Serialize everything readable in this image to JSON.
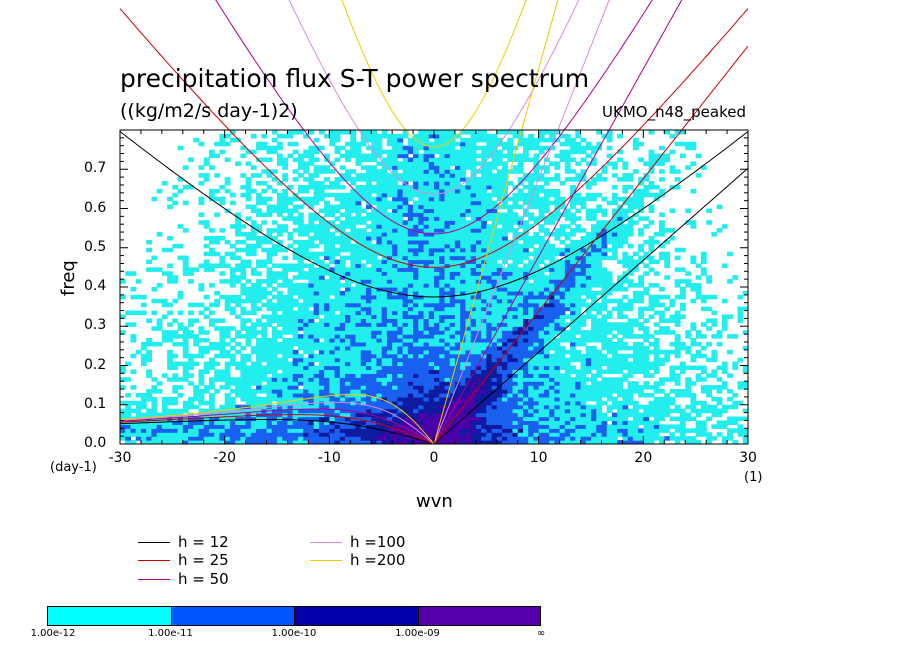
{
  "header": {
    "title": "precipitation flux S-T power spectrum",
    "units": "((kg/m2/s day-1)2)",
    "model": "UKMO_n48_peaked"
  },
  "chart_data": {
    "type": "heatmap",
    "xlabel": "wvn",
    "ylabel": "freq",
    "x_unit": "(1)",
    "y_unit": "(day-1)",
    "xlim": [
      -30,
      30
    ],
    "ylim": [
      0.0,
      0.8
    ],
    "x_ticks": [
      "-30",
      "-20",
      "-10",
      "0",
      "10",
      "20",
      "30"
    ],
    "y_ticks": [
      "0.0",
      "0.1",
      "0.2",
      "0.3",
      "0.4",
      "0.5",
      "0.6",
      "0.7"
    ],
    "x_tick_values": [
      -30,
      -20,
      -10,
      0,
      10,
      20,
      30
    ],
    "y_tick_values": [
      0.0,
      0.1,
      0.2,
      0.3,
      0.4,
      0.5,
      0.6,
      0.7
    ],
    "colorbar": {
      "labels": [
        "1.00e-12",
        "1.00e-11",
        "1.00e-10",
        "1.00e-09",
        "∞"
      ],
      "colors": [
        "#00ffff",
        "#0055ff",
        "#0000aa",
        "#5500aa"
      ]
    },
    "fill_colors": {
      "band1": "#22eeee",
      "band2": "#1a60f0",
      "band3": "#0e1aa0",
      "band4": "#4a00a8"
    },
    "dispersion_curves": [
      {
        "name": "h = 12",
        "h": 12,
        "color": "#000000"
      },
      {
        "name": "h = 25",
        "h": 25,
        "color": "#cc0000"
      },
      {
        "name": "h = 50",
        "h": 50,
        "color": "#b00090"
      },
      {
        "name": "h =100",
        "h": 100,
        "color": "#dd88dd"
      },
      {
        "name": "h =200",
        "h": 200,
        "color": "#eecc00"
      }
    ]
  }
}
